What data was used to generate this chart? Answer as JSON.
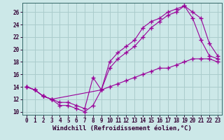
{
  "xlabel": "Windchill (Refroidissement éolien,°C)",
  "background_color": "#cce8e8",
  "grid_color": "#aacccc",
  "line_color": "#990099",
  "xlim": [
    -0.5,
    23.5
  ],
  "ylim": [
    9.5,
    27.5
  ],
  "yticks": [
    10,
    12,
    14,
    16,
    18,
    20,
    22,
    24,
    26
  ],
  "xticks": [
    0,
    1,
    2,
    3,
    4,
    5,
    6,
    7,
    8,
    9,
    10,
    11,
    12,
    13,
    14,
    15,
    16,
    17,
    18,
    19,
    20,
    21,
    22,
    23
  ],
  "line1_x": [
    0,
    1,
    2,
    3,
    4,
    5,
    6,
    7,
    8,
    9,
    10,
    11,
    12,
    13,
    14,
    15,
    16,
    17,
    18,
    19,
    20,
    21,
    22,
    23
  ],
  "line1_y": [
    14,
    13.5,
    12.5,
    12,
    11,
    11,
    10.5,
    10,
    11,
    13.5,
    14,
    14.5,
    15,
    15.5,
    16,
    16.5,
    17,
    17,
    17.5,
    18,
    18.5,
    18.5,
    18.5,
    18
  ],
  "line2_x": [
    0,
    1,
    2,
    3,
    4,
    5,
    6,
    7,
    8,
    9,
    10,
    11,
    12,
    13,
    14,
    15,
    16,
    17,
    18,
    19,
    20,
    21,
    22,
    23
  ],
  "line2_y": [
    14,
    13.5,
    12.5,
    12,
    11.5,
    11.5,
    11,
    10.5,
    15.5,
    13.5,
    18,
    19.5,
    20.5,
    21.5,
    23.5,
    24.5,
    25,
    26,
    26.5,
    27,
    25,
    21.5,
    19,
    18.5
  ],
  "line3_x": [
    0,
    1,
    2,
    3,
    9,
    10,
    11,
    12,
    13,
    14,
    15,
    16,
    17,
    18,
    19,
    20,
    21,
    22,
    23
  ],
  "line3_y": [
    14,
    13.5,
    12.5,
    12,
    13.5,
    17,
    18.5,
    19.5,
    20.5,
    22,
    23.5,
    24.5,
    25.5,
    26,
    27,
    26,
    25,
    21,
    19
  ]
}
